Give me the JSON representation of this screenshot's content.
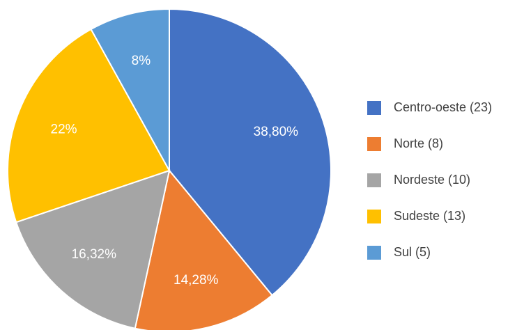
{
  "chart_data": {
    "type": "pie",
    "categories": [
      "Centro-oeste (23)",
      "Norte (8)",
      "Nordeste (10)",
      "Sudeste (13)",
      "Sul (5)"
    ],
    "values": [
      38.8,
      14.28,
      16.32,
      22,
      8
    ],
    "value_labels": [
      "38,80%",
      "14,28%",
      "16,32%",
      "22%",
      "8%"
    ],
    "colors": [
      "#4472c4",
      "#ed7d31",
      "#a5a5a5",
      "#ffc000",
      "#5b9bd5"
    ],
    "legend": "right"
  }
}
